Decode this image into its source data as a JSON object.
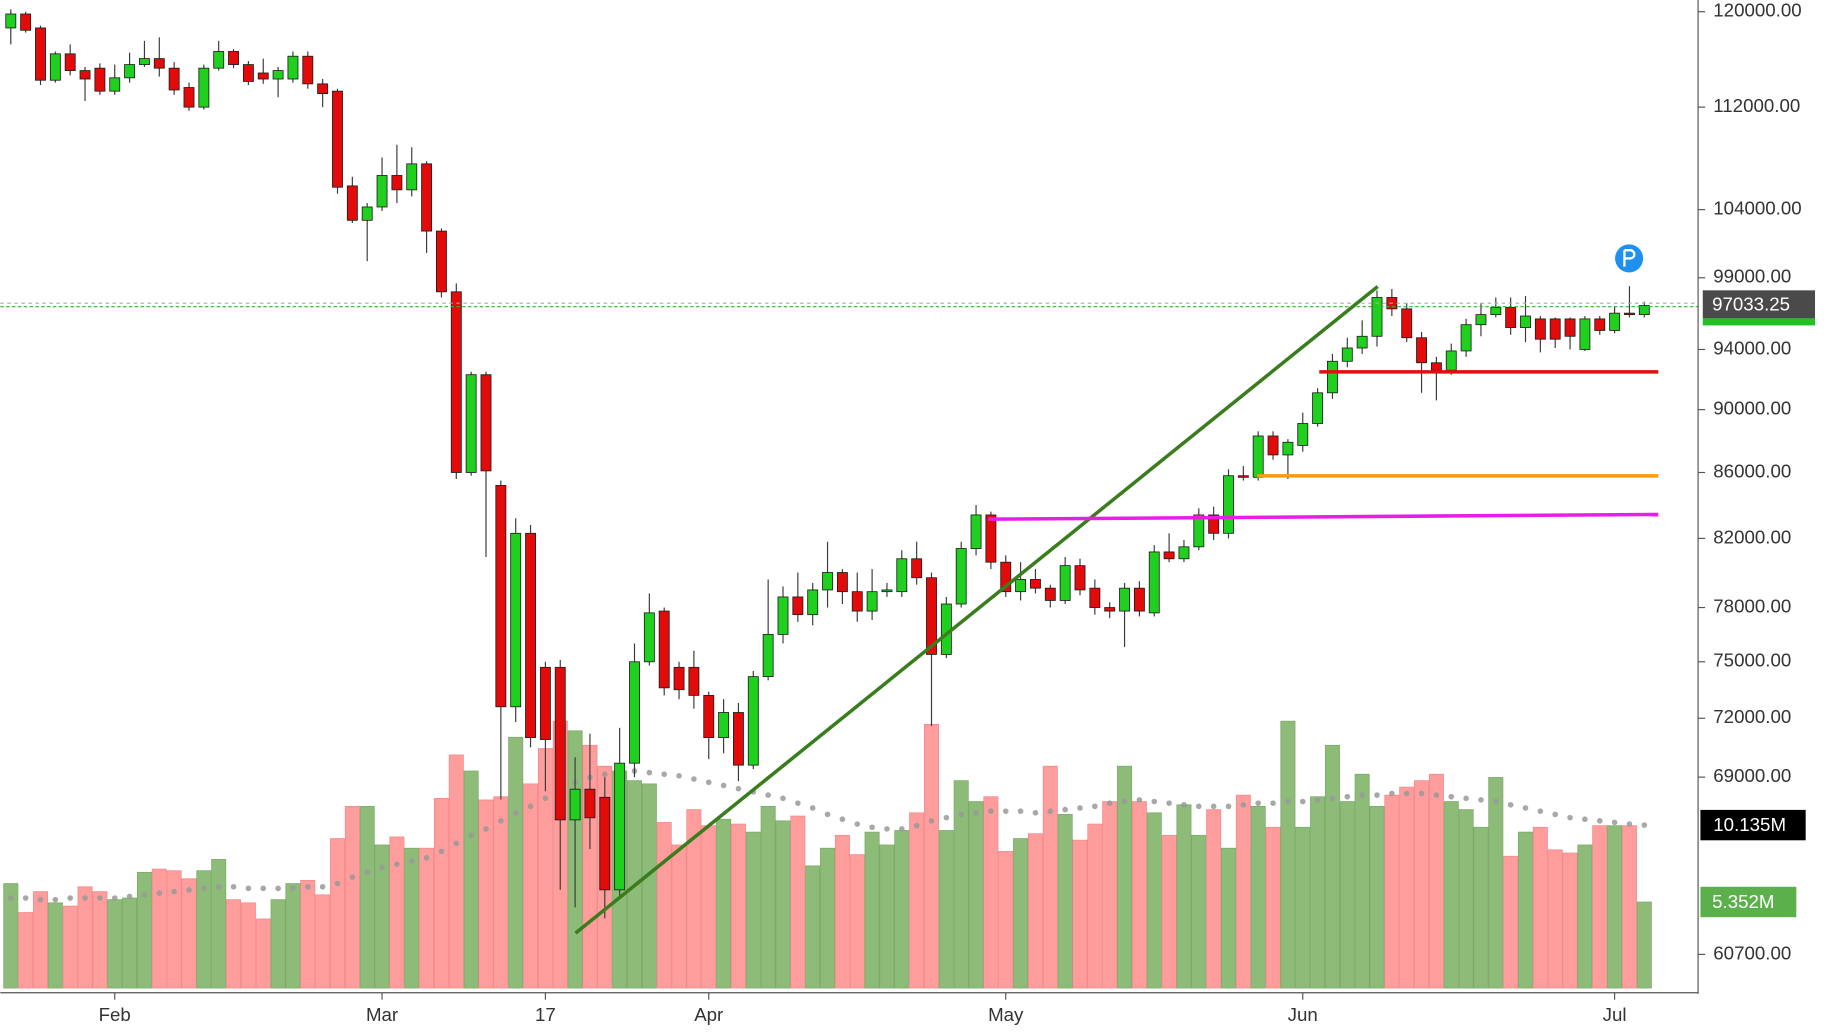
{
  "chart_data": {
    "type": "candlestick",
    "log_scale": true,
    "ylim": [
      59240,
      121020
    ],
    "yticks": [
      {
        "value": 120000,
        "label": "120000.00"
      },
      {
        "value": 112000,
        "label": "112000.00"
      },
      {
        "value": 104000,
        "label": "104000.00"
      },
      {
        "value": 99000,
        "label": "99000.00"
      },
      {
        "value": 94000,
        "label": "94000.00"
      },
      {
        "value": 90000,
        "label": "90000.00"
      },
      {
        "value": 86000,
        "label": "86000.00"
      },
      {
        "value": 82000,
        "label": "82000.00"
      },
      {
        "value": 78000,
        "label": "78000.00"
      },
      {
        "value": 75000,
        "label": "75000.00"
      },
      {
        "value": 72000,
        "label": "72000.00"
      },
      {
        "value": 69000,
        "label": "69000.00"
      },
      {
        "value": 60700,
        "label": "60700.00"
      }
    ],
    "up_color": "#1fd01f",
    "down_color": "#e30a0a",
    "volume_up_color": "#8dbb78",
    "volume_down_color": "#ff9c9c",
    "ma_color": "#999999",
    "categories": [
      null,
      null,
      null,
      null,
      null,
      null,
      null,
      "Feb",
      null,
      null,
      null,
      null,
      null,
      null,
      null,
      null,
      null,
      null,
      null,
      null,
      null,
      null,
      null,
      null,
      null,
      "Mar",
      null,
      null,
      null,
      null,
      null,
      null,
      null,
      null,
      null,
      null,
      "17",
      null,
      null,
      null,
      null,
      null,
      null,
      null,
      null,
      null,
      null,
      "Apr",
      null,
      null,
      null,
      null,
      null,
      null,
      null,
      null,
      null,
      null,
      null,
      null,
      null,
      null,
      null,
      null,
      null,
      null,
      null,
      "May",
      null,
      null,
      null,
      null,
      null,
      null,
      null,
      null,
      null,
      null,
      null,
      null,
      null,
      null,
      null,
      null,
      null,
      null,
      null,
      "Jun",
      null,
      null,
      null,
      null,
      null,
      null,
      null,
      null,
      null,
      null,
      null,
      null,
      null,
      null,
      null,
      null,
      null,
      null,
      null,
      null,
      "Jul",
      null,
      null
    ],
    "open": [
      118600,
      119800,
      118600,
      114200,
      116400,
      115000,
      115200,
      113300,
      114400,
      115500,
      116000,
      115200,
      113600,
      112000,
      115200,
      116600,
      115500,
      114800,
      114300,
      114300,
      116200,
      113900,
      113300,
      105800,
      103200,
      104200,
      106600,
      105500,
      107500,
      102400,
      98000,
      86000,
      92300,
      85200,
      72600,
      82300,
      74700,
      74700,
      66900,
      68400,
      68000,
      63600,
      69700,
      75000,
      77800,
      74700,
      74700,
      73200,
      71000,
      72300,
      69600,
      74200,
      76500,
      78600,
      77600,
      79000,
      80000,
      78900,
      77800,
      78900,
      78900,
      80800,
      79700,
      75400,
      78200,
      81400,
      83400,
      80600,
      78900,
      79600,
      79100,
      78400,
      80400,
      79100,
      78000,
      77800,
      79100,
      77700,
      81200,
      80800,
      81500,
      83400,
      82300,
      85800,
      85700,
      88300,
      87100,
      87700,
      89100,
      91100,
      93200,
      94100,
      94900,
      97600,
      96800,
      94800,
      93100,
      92600,
      93900,
      95700,
      96400,
      96900,
      95500,
      96100,
      96100,
      96100,
      94000,
      96100,
      95300,
      96500,
      96400
    ],
    "high": [
      120200,
      120000,
      118800,
      116600,
      117200,
      115300,
      115600,
      115500,
      116500,
      117500,
      117800,
      115700,
      114000,
      115500,
      117500,
      116800,
      115800,
      116000,
      115300,
      116600,
      116600,
      114300,
      113500,
      106500,
      104500,
      108000,
      109000,
      108800,
      107700,
      102600,
      98600,
      92500,
      92500,
      85500,
      83200,
      82800,
      75000,
      75100,
      70000,
      71200,
      69000,
      71500,
      76000,
      78800,
      78000,
      75000,
      75600,
      73400,
      73000,
      72800,
      74500,
      79600,
      79200,
      80000,
      79400,
      81800,
      80200,
      80000,
      80200,
      79400,
      81300,
      81800,
      80000,
      78600,
      81800,
      84000,
      83600,
      81000,
      80600,
      80200,
      79300,
      80900,
      80800,
      79600,
      78300,
      79400,
      79500,
      81600,
      82300,
      81900,
      83800,
      83900,
      86200,
      86400,
      88600,
      88600,
      88100,
      89800,
      91400,
      93700,
      94800,
      96000,
      98100,
      98200,
      97200,
      95200,
      93500,
      94400,
      96100,
      97200,
      97600,
      97600,
      97700,
      96300,
      96200,
      96200,
      96300,
      96300,
      97000,
      98400,
      97300
    ],
    "low": [
      117200,
      118200,
      113800,
      114000,
      114600,
      112500,
      113000,
      113000,
      114000,
      115300,
      114500,
      113000,
      111700,
      111800,
      115000,
      115200,
      113800,
      113900,
      112800,
      114000,
      113500,
      112000,
      105200,
      103000,
      100200,
      103900,
      104500,
      105000,
      100800,
      97600,
      85600,
      85800,
      80900,
      67900,
      71800,
      70500,
      68300,
      63600,
      62800,
      65500,
      62300,
      63300,
      69000,
      74800,
      73200,
      73000,
      72500,
      69900,
      70200,
      68800,
      69400,
      74000,
      76000,
      77200,
      77000,
      78000,
      78200,
      77200,
      77300,
      78600,
      78600,
      79300,
      71600,
      75200,
      78000,
      81000,
      80200,
      78600,
      78400,
      78800,
      78000,
      78200,
      78700,
      77600,
      77400,
      75800,
      77500,
      77500,
      80600,
      80600,
      81300,
      81900,
      82000,
      85500,
      85500,
      86800,
      85600,
      87300,
      88900,
      90700,
      92800,
      93700,
      94200,
      96300,
      94500,
      91100,
      90600,
      92300,
      93500,
      94900,
      96200,
      95000,
      94500,
      93800,
      94100,
      94000,
      93900,
      95000,
      95100,
      96200,
      96200
    ],
    "close": [
      119800,
      118400,
      114200,
      116400,
      115000,
      114300,
      113300,
      114400,
      115500,
      116000,
      115200,
      113400,
      112000,
      115200,
      116600,
      115500,
      114100,
      114300,
      115000,
      116200,
      113900,
      113100,
      105700,
      103200,
      104200,
      106600,
      105500,
      107500,
      102400,
      98000,
      86000,
      92300,
      86100,
      72600,
      82300,
      71000,
      70900,
      66900,
      68400,
      67000,
      63600,
      69700,
      75000,
      77700,
      73600,
      73500,
      73200,
      71000,
      72300,
      69600,
      74200,
      76500,
      78600,
      77600,
      79000,
      80000,
      78900,
      77800,
      78900,
      79000,
      80800,
      79700,
      75400,
      78200,
      81400,
      83400,
      80600,
      78900,
      79600,
      79100,
      78400,
      80400,
      79000,
      78000,
      77800,
      79100,
      77800,
      81200,
      80800,
      81500,
      83400,
      82300,
      85800,
      85700,
      88300,
      87100,
      87900,
      89100,
      91100,
      93200,
      94100,
      94900,
      97600,
      96800,
      94800,
      93100,
      92600,
      93900,
      95700,
      96400,
      96900,
      95500,
      96300,
      94700,
      94700,
      94900,
      96100,
      95300,
      96500,
      96400,
      97033.25
    ],
    "volume": {
      "ylim": [
        0,
        61.45
      ],
      "values": [
        6.5,
        4.7,
        6.0,
        5.3,
        5.1,
        6.3,
        6.0,
        5.5,
        5.6,
        7.2,
        7.4,
        7.3,
        6.8,
        7.3,
        8.0,
        5.5,
        5.3,
        4.3,
        5.5,
        6.5,
        6.7,
        5.8,
        9.3,
        11.3,
        11.3,
        8.9,
        9.4,
        8.7,
        8.7,
        11.8,
        14.5,
        13.5,
        11.7,
        11.9,
        15.6,
        12.7,
        14.9,
        16.6,
        16.0,
        15.1,
        13.8,
        13.5,
        12.9,
        12.7,
        10.3,
        8.9,
        11.1,
        10.1,
        10.5,
        10.2,
        9.7,
        11.3,
        10.4,
        10.7,
        7.6,
        8.7,
        9.5,
        8.3,
        9.7,
        8.9,
        9.8,
        10.9,
        16.4,
        9.8,
        12.9,
        11.6,
        11.9,
        8.5,
        9.3,
        9.6,
        13.8,
        10.8,
        9.2,
        10.2,
        11.6,
        13.8,
        11.6,
        10.9,
        9.5,
        11.4,
        9.5,
        11.1,
        8.7,
        12.0,
        11.3,
        10.0,
        16.6,
        10.0,
        11.9,
        15.1,
        11.6,
        13.3,
        11.3,
        12.0,
        12.5,
        12.9,
        13.3,
        11.6,
        11.1,
        10.0,
        13.1,
        8.2,
        9.7,
        10.0,
        8.6,
        8.4,
        8.9,
        10.1,
        10.1,
        10.1,
        5.352
      ],
      "ma": [
        5.6,
        5.6,
        5.5,
        5.5,
        5.6,
        5.6,
        5.6,
        5.6,
        5.7,
        5.8,
        5.9,
        6.0,
        6.1,
        6.2,
        6.3,
        6.3,
        6.2,
        6.2,
        6.2,
        6.2,
        6.3,
        6.3,
        6.5,
        6.9,
        7.2,
        7.5,
        7.7,
        7.9,
        8.1,
        8.5,
        9.0,
        9.5,
        9.9,
        10.4,
        10.9,
        11.3,
        11.8,
        12.3,
        12.8,
        13.1,
        13.3,
        13.4,
        13.5,
        13.4,
        13.3,
        13.2,
        13.0,
        12.8,
        12.6,
        12.4,
        12.2,
        12.0,
        11.8,
        11.5,
        11.2,
        10.8,
        10.5,
        10.2,
        10.0,
        9.9,
        9.9,
        10.1,
        10.4,
        10.6,
        10.8,
        10.9,
        11.0,
        11.0,
        11.0,
        10.9,
        11.0,
        11.1,
        11.2,
        11.3,
        11.5,
        11.6,
        11.7,
        11.6,
        11.5,
        11.4,
        11.3,
        11.3,
        11.3,
        11.4,
        11.5,
        11.5,
        11.6,
        11.6,
        11.7,
        11.8,
        11.9,
        12.0,
        12.0,
        12.1,
        12.1,
        12.1,
        12.0,
        11.9,
        11.8,
        11.7,
        11.6,
        11.4,
        11.2,
        11.0,
        10.8,
        10.6,
        10.5,
        10.4,
        10.3,
        10.2,
        10.135
      ],
      "ma_label": {
        "value": 10.135,
        "label": "10.135M"
      },
      "last_label": {
        "value": 5.352,
        "label": "5.352M"
      }
    }
  }
}
